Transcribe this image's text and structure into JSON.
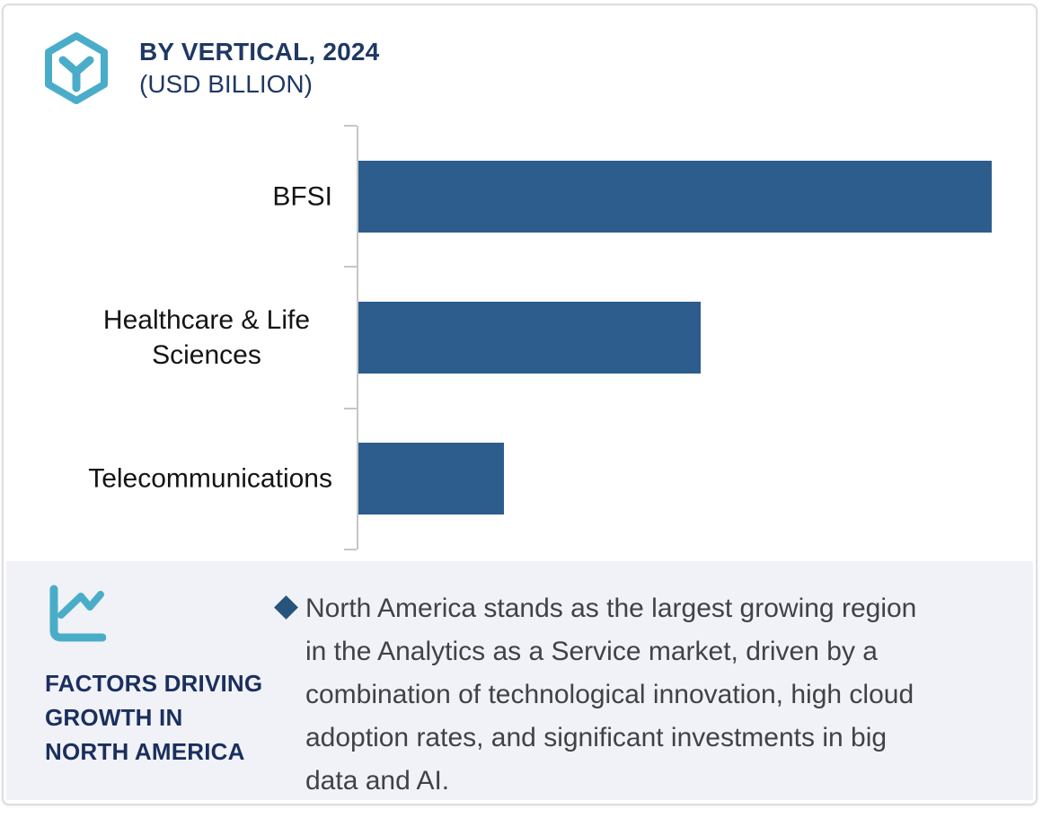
{
  "card": {
    "background": "#ffffff",
    "border_color": "#dddde2"
  },
  "header": {
    "title": "BY VERTICAL, 2024",
    "subtitle": "(USD BILLION)",
    "title_color": "#1f3864",
    "logo_icon": "hexagon-cube-logo",
    "logo_color": "#49adca"
  },
  "chart_data": {
    "type": "bar",
    "orientation": "horizontal",
    "title": "BY VERTICAL, 2024",
    "subtitle": "(USD BILLION)",
    "unit": "USD Billion",
    "categories": [
      "BFSI",
      "Healthcare & Life Sciences",
      "Telecommunications"
    ],
    "values": [
      100,
      54,
      23
    ],
    "value_note": "no numeric axis or data labels shown in chart; values are relative bar lengths estimated from pixels (BFSI = 100)",
    "xlabel": "",
    "ylabel": "",
    "xlim": [
      0,
      100
    ],
    "grid": false,
    "legend": false,
    "bar_color": "#2c5d8d",
    "axis_color": "#c6c6c6",
    "label_color": "#141414"
  },
  "factors_panel": {
    "background": "#f1f2f7",
    "icon": "trend-line-chart-icon",
    "icon_color": "#49adca",
    "heading_lines": [
      "FACTORS DRIVING",
      "GROWTH IN",
      "NORTH AMERICA"
    ],
    "heading_color": "#1b2f5e",
    "bullet_icon": "diamond-bullet",
    "bullet_color": "#26547c",
    "paragraph_lines": [
      "North America stands as the largest growing region",
      "in the Analytics as a Service market, driven by a",
      "combination of technological innovation, high cloud",
      "adoption rates, and significant investments in big",
      "data and AI."
    ],
    "text_color": "#404245"
  }
}
